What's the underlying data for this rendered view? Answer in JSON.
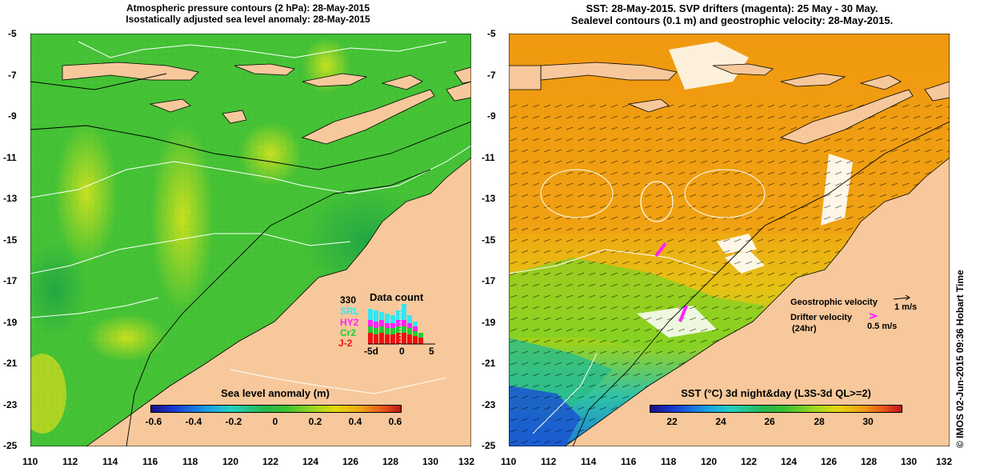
{
  "left": {
    "title_line1": "Atmospheric pressure contours (2 hPa): 28-May-2015",
    "title_line2": "Isostatically adjusted sea level anomaly: 28-May-2015",
    "colorbar_title": "Sea level anomaly (m)",
    "colorbar_ticks": [
      "-0.6",
      "-0.4",
      "-0.2",
      "0",
      "0.2",
      "0.4",
      "0.6"
    ],
    "data_count": {
      "title": "Data count",
      "max_label": "330",
      "satellites": [
        {
          "name": "SRL",
          "color": "#33e6f2"
        },
        {
          "name": "HY2",
          "color": "#ff22ff"
        },
        {
          "name": "Cr2",
          "color": "#22cc33"
        },
        {
          "name": "J-2",
          "color": "#ee1111"
        }
      ],
      "xticks": [
        "-5d",
        "0",
        "5"
      ]
    }
  },
  "right": {
    "title_line1": "SST: 28-May-2015. SVP drifters (magenta): 25 May - 30 May.",
    "title_line2": "Sealevel contours (0.1 m) and geostrophic velocity: 28-May-2015.",
    "colorbar_title": "SST (°C) 3d night&day (L3S-3d QL>=2)",
    "colorbar_ticks": [
      "22",
      "24",
      "26",
      "28",
      "30"
    ],
    "legend": {
      "geo_label": "Geostrophic velocity",
      "geo_value": "1 m/s",
      "drifter_label": "Drifter velocity",
      "drifter_sub": "(24hr)",
      "drifter_value": "0.5 m/s"
    }
  },
  "axes": {
    "lat_ticks": [
      "-5",
      "-7",
      "-9",
      "-11",
      "-13",
      "-15",
      "-17",
      "-19",
      "-21",
      "-23",
      "-25"
    ],
    "lon_ticks": [
      "110",
      "112",
      "114",
      "116",
      "118",
      "120",
      "122",
      "124",
      "126",
      "128",
      "130",
      "132"
    ]
  },
  "credit": "© IMOS 02-Jun-2015 09:36 Hobart Time",
  "colors": {
    "land": "#f7c89b",
    "sla_green": "#44c433",
    "sst_orange": "#f0a010"
  }
}
